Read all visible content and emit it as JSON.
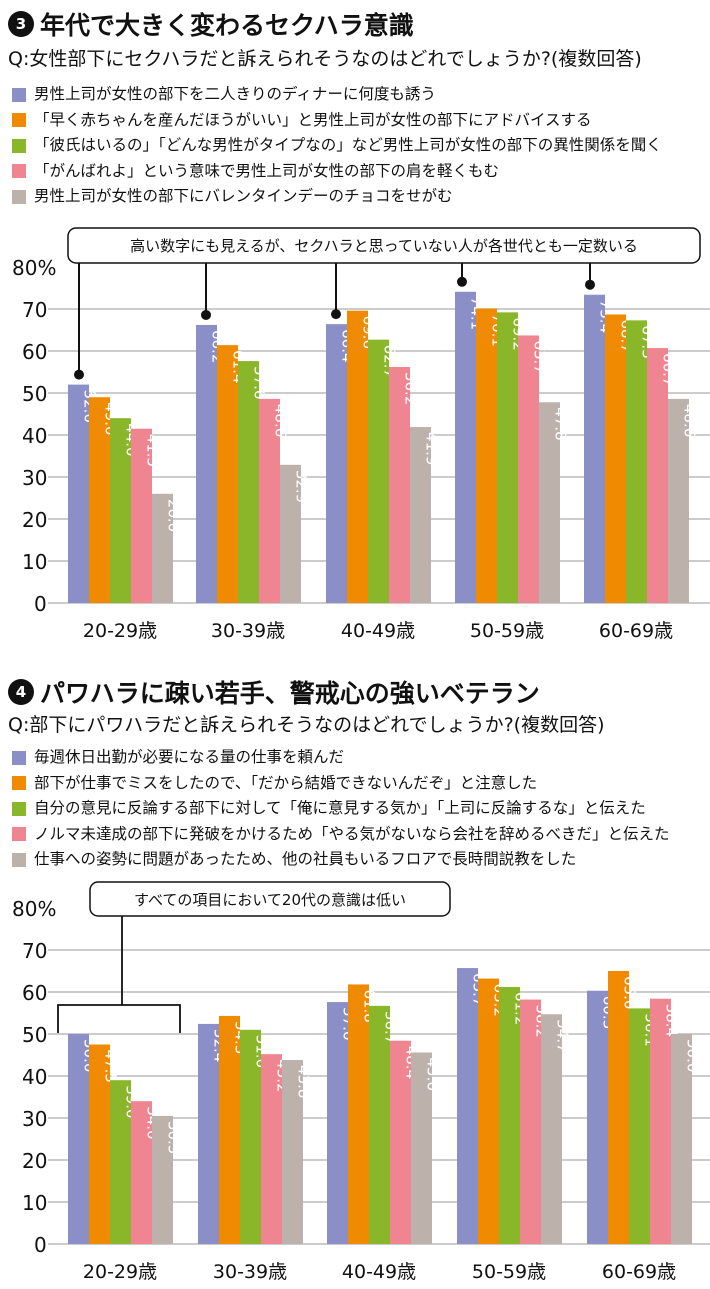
{
  "colors": [
    "#8b8fc7",
    "#f08a00",
    "#8ab62a",
    "#ef8591",
    "#bcb1ab"
  ],
  "chart_data": [
    {
      "type": "bar",
      "number": "3",
      "title": "年代で大きく変わるセクハラ意識",
      "subtitle": "Q:女性部下にセクハラだと訴えられそうなのはどれでしょうか?(複数回答)",
      "categories": [
        "20-29歳",
        "30-39歳",
        "40-49歳",
        "50-59歳",
        "60-69歳"
      ],
      "yticks": [
        "80%",
        "70",
        "60",
        "50",
        "40",
        "30",
        "20",
        "10",
        "0"
      ],
      "ylim": [
        0,
        80
      ],
      "grid": true,
      "annotation": "高い数字にも見えるが、セクハラと思っていない人が各世代とも一定数いる",
      "series": [
        {
          "name": "男性上司が女性の部下を二人きりのディナーに何度も誘う",
          "values": [
            52.0,
            66.2,
            66.4,
            74.1,
            73.4
          ]
        },
        {
          "name": "「早く赤ちゃんを産んだほうがいい」と男性上司が女性の部下にアドバイスする",
          "values": [
            49.0,
            61.4,
            69.6,
            70.1,
            68.7
          ]
        },
        {
          "name": "「彼氏はいるの」「どんな男性がタイプなの」など男性上司が女性の部下の異性関係を聞く",
          "values": [
            44.0,
            57.6,
            62.7,
            69.2,
            67.3
          ]
        },
        {
          "name": "「がんばれよ」という意味で男性上司が女性の部下の肩を軽くもむ",
          "values": [
            41.5,
            48.6,
            56.2,
            63.7,
            60.7
          ]
        },
        {
          "name": "男性上司が女性の部下にバレンタインデーのチョコをせがむ",
          "values": [
            26.0,
            32.9,
            41.9,
            47.8,
            48.6
          ]
        }
      ]
    },
    {
      "type": "bar",
      "number": "4",
      "title": "パワハラに疎い若手、警戒心の強いベテラン",
      "subtitle": "Q:部下にパワハラだと訴えられそうなのはどれでしょうか?(複数回答)",
      "categories": [
        "20-29歳",
        "30-39歳",
        "40-49歳",
        "50-59歳",
        "60-69歳"
      ],
      "yticks": [
        "80%",
        "70",
        "60",
        "50",
        "40",
        "30",
        "20",
        "10",
        "0"
      ],
      "ylim": [
        0,
        80
      ],
      "grid": true,
      "annotation": "すべての項目において20代の意識は低い",
      "series": [
        {
          "name": "毎週休日出勤が必要になる量の仕事を頼んだ",
          "values": [
            50.0,
            52.4,
            57.6,
            65.7,
            60.3
          ]
        },
        {
          "name": "部下が仕事でミスをしたので、「だから結婚できないんだぞ」と注意した",
          "values": [
            47.5,
            54.3,
            61.8,
            63.2,
            65.0
          ]
        },
        {
          "name": "自分の意見に反論する部下に対して「俺に意見する気か」「上司に反論するな」と伝えた",
          "values": [
            39.0,
            51.0,
            56.7,
            61.2,
            56.1
          ]
        },
        {
          "name": "ノルマ未達成の部下に発破をかけるため「やる気がないなら会社を辞めるべきだ」と伝えた",
          "values": [
            34.0,
            45.2,
            48.4,
            58.2,
            58.4
          ]
        },
        {
          "name": "仕事への姿勢に問題があったため、他の社員もいるフロアで長時間説教をした",
          "values": [
            30.5,
            43.8,
            45.6,
            54.7,
            50.0
          ]
        }
      ]
    }
  ]
}
